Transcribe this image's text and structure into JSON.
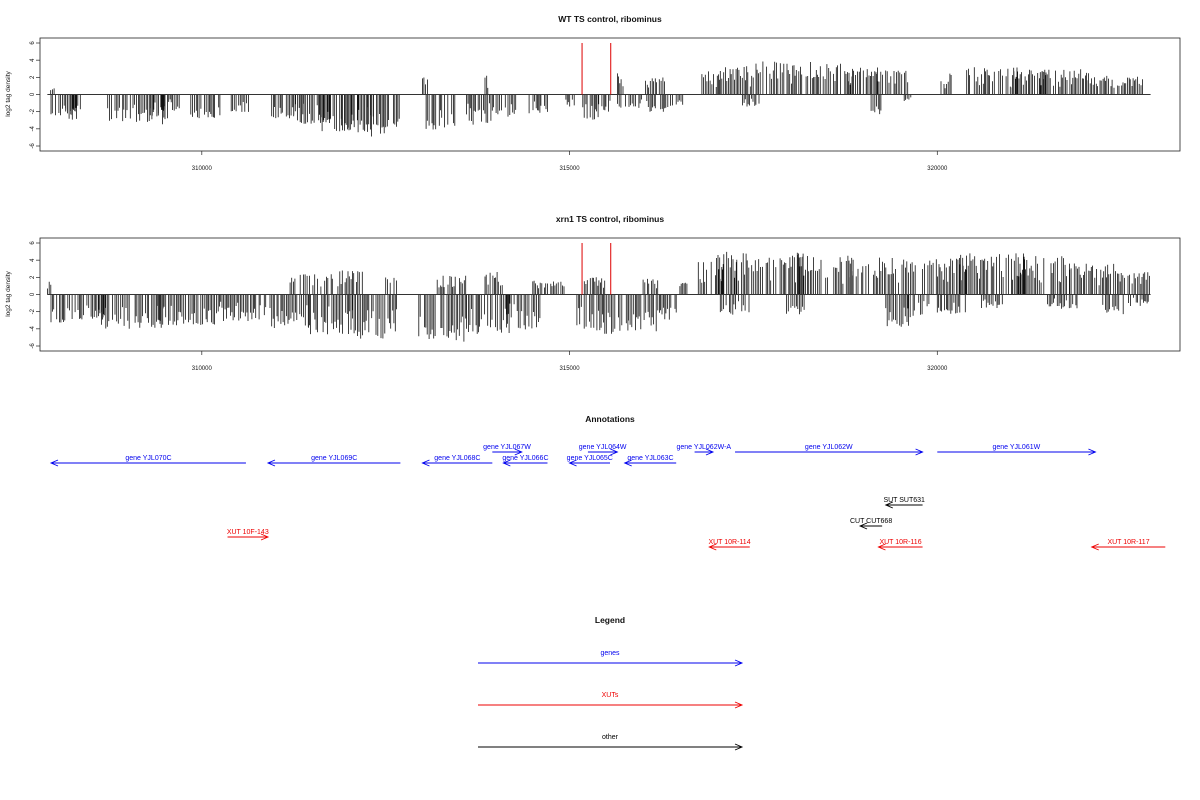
{
  "chart_data": [
    {
      "type": "bar",
      "title": "WT TS control, ribominus",
      "ylabel": "log2 tag density",
      "xlim": [
        307800,
        323300
      ],
      "ylim": [
        -6,
        6
      ],
      "xticks": [
        310000,
        315000,
        320000
      ],
      "yticks": [
        -6,
        -4,
        -2,
        0,
        2,
        4,
        6
      ],
      "baseline": {
        "x_start": 307900,
        "x_end": 322900
      },
      "markers": {
        "color": "#dd0000",
        "x": [
          315170,
          315560
        ],
        "y_top": 6
      },
      "density": {
        "color": "#111111",
        "segments": [
          {
            "x": [
              307920,
              308000
            ],
            "y": 0.9
          },
          {
            "x": [
              307950,
              308300
            ],
            "y": -2.5
          },
          {
            "x": [
              308150,
              308350
            ],
            "y": -3
          },
          {
            "x": [
              308700,
              309500
            ],
            "y": -3.2
          },
          {
            "x": [
              309300,
              309500
            ],
            "y": -2.5
          },
          {
            "x": [
              309450,
              309550
            ],
            "y": -3.5
          },
          {
            "x": [
              309550,
              309700
            ],
            "y": -2
          },
          {
            "x": [
              309850,
              310300
            ],
            "y": -2.8
          },
          {
            "x": [
              310400,
              310650
            ],
            "y": -2.2
          },
          {
            "x": [
              310950,
              311400
            ],
            "y": -2.8
          },
          {
            "x": [
              311250,
              311750
            ],
            "y": -3.6
          },
          {
            "x": [
              311600,
              312050
            ],
            "y": -4.5
          },
          {
            "x": [
              311900,
              312350
            ],
            "y": -4.2
          },
          {
            "x": [
              312100,
              312500
            ],
            "y": -4.9
          },
          {
            "x": [
              312450,
              312700
            ],
            "y": -4.0
          },
          {
            "x": [
              313000,
              313080
            ],
            "y": 2
          },
          {
            "x": [
              313050,
              313450
            ],
            "y": -4.2
          },
          {
            "x": [
              313600,
              313950
            ],
            "y": -3.6
          },
          {
            "x": [
              313850,
              313900
            ],
            "y": 2.8
          },
          {
            "x": [
              313950,
              314300
            ],
            "y": -2.7
          },
          {
            "x": [
              314450,
              314700
            ],
            "y": -2.2
          },
          {
            "x": [
              314950,
              315100
            ],
            "y": -1.5
          },
          {
            "x": [
              315180,
              315400
            ],
            "y": -3
          },
          {
            "x": [
              315350,
              315550
            ],
            "y": -2
          },
          {
            "x": [
              315650,
              315750
            ],
            "y": 2.5
          },
          {
            "x": [
              315650,
              316000
            ],
            "y": -1.6
          },
          {
            "x": [
              316000,
              316300
            ],
            "y": 2.0
          },
          {
            "x": [
              316050,
              316400
            ],
            "y": -2.1
          },
          {
            "x": [
              316450,
              316550
            ],
            "y": -1.2
          },
          {
            "x": [
              316800,
              317050
            ],
            "y": 2.8
          },
          {
            "x": [
              317050,
              317500
            ],
            "y": 3.4
          },
          {
            "x": [
              317350,
              317600
            ],
            "y": -1.4
          },
          {
            "x": [
              317500,
              318300
            ],
            "y": 3.9
          },
          {
            "x": [
              318300,
              318900
            ],
            "y": 3.6
          },
          {
            "x": [
              318800,
              319200
            ],
            "y": 3.2
          },
          {
            "x": [
              319100,
              319250
            ],
            "y": -2.5
          },
          {
            "x": [
              319150,
              319600
            ],
            "y": 2.9
          },
          {
            "x": [
              319550,
              319650
            ],
            "y": -0.8
          },
          {
            "x": [
              320050,
              320200
            ],
            "y": 2.6
          },
          {
            "x": [
              320400,
              321100
            ],
            "y": 3.2
          },
          {
            "x": [
              321000,
              321500
            ],
            "y": 3.0
          },
          {
            "x": [
              321400,
              322100
            ],
            "y": 3.0
          },
          {
            "x": [
              322050,
              322800
            ],
            "y": 2.2
          }
        ]
      }
    },
    {
      "type": "bar",
      "title": "xrn1 TS control, ribominus",
      "ylabel": "log2 tag density",
      "xlim": [
        307800,
        323300
      ],
      "ylim": [
        -6,
        6
      ],
      "xticks": [
        310000,
        315000,
        320000
      ],
      "yticks": [
        -6,
        -4,
        -2,
        0,
        2,
        4,
        6
      ],
      "baseline": {
        "x_start": 307900,
        "x_end": 322900
      },
      "markers": {
        "color": "#dd0000",
        "x": [
          315170,
          315560
        ],
        "y_top": 6
      },
      "density": {
        "color": "#111111",
        "segments": [
          {
            "x": [
              307900,
              307980
            ],
            "y": 1.8
          },
          {
            "x": [
              307950,
              308700
            ],
            "y": -3.3
          },
          {
            "x": [
              308600,
              309500
            ],
            "y": -4.0
          },
          {
            "x": [
              309400,
              310200
            ],
            "y": -3.6
          },
          {
            "x": [
              310200,
              310800
            ],
            "y": -3.1
          },
          {
            "x": [
              310850,
              311500
            ],
            "y": -3.9
          },
          {
            "x": [
              311200,
              311800
            ],
            "y": 2.4
          },
          {
            "x": [
              311450,
              312100
            ],
            "y": -4.7
          },
          {
            "x": [
              311850,
              312200
            ],
            "y": 3.0
          },
          {
            "x": [
              312050,
              312650
            ],
            "y": -5.2
          },
          {
            "x": [
              312500,
              312650
            ],
            "y": 2.0
          },
          {
            "x": [
              312950,
              313600
            ],
            "y": -5.5
          },
          {
            "x": [
              313200,
              313600
            ],
            "y": 2.3
          },
          {
            "x": [
              313600,
              314200
            ],
            "y": -4.8
          },
          {
            "x": [
              313850,
              314100
            ],
            "y": 2.7
          },
          {
            "x": [
              314150,
              314600
            ],
            "y": -4.1
          },
          {
            "x": [
              314500,
              314950
            ],
            "y": 1.6
          },
          {
            "x": [
              315100,
              315800
            ],
            "y": -4.6
          },
          {
            "x": [
              315200,
              315500
            ],
            "y": 2.0
          },
          {
            "x": [
              315800,
              316200
            ],
            "y": -4.4
          },
          {
            "x": [
              316000,
              316200
            ],
            "y": 1.9
          },
          {
            "x": [
              316200,
              316450
            ],
            "y": -3.1
          },
          {
            "x": [
              316500,
              316600
            ],
            "y": 1.4
          },
          {
            "x": [
              316750,
              317100
            ],
            "y": 3.9
          },
          {
            "x": [
              317000,
              317300
            ],
            "y": 5.8
          },
          {
            "x": [
              317050,
              317450
            ],
            "y": -2.4
          },
          {
            "x": [
              317250,
              318200
            ],
            "y": 4.9
          },
          {
            "x": [
              317950,
              318200
            ],
            "y": -2.3
          },
          {
            "x": [
              318100,
              318900
            ],
            "y": 4.6
          },
          {
            "x": [
              318800,
              319700
            ],
            "y": 4.4
          },
          {
            "x": [
              319300,
              319650
            ],
            "y": -3.9
          },
          {
            "x": [
              319600,
              319900
            ],
            "y": -2.5
          },
          {
            "x": [
              319800,
              320400
            ],
            "y": 4.2
          },
          {
            "x": [
              320000,
              320400
            ],
            "y": -2.4
          },
          {
            "x": [
              320300,
              321200
            ],
            "y": 4.8
          },
          {
            "x": [
              320600,
              320900
            ],
            "y": -1.6
          },
          {
            "x": [
              321100,
              321800
            ],
            "y": 4.5
          },
          {
            "x": [
              321500,
              321900
            ],
            "y": -1.7
          },
          {
            "x": [
              321800,
              322500
            ],
            "y": 3.7
          },
          {
            "x": [
              322250,
              322550
            ],
            "y": -2.3
          },
          {
            "x": [
              322500,
              322900
            ],
            "y": 2.6
          },
          {
            "x": [
              322600,
              322900
            ],
            "y": -1.4
          }
        ]
      }
    }
  ],
  "annotations": {
    "title": "Annotations",
    "features": [
      {
        "label": "gene YJL070C",
        "dir": "-",
        "start": 307950,
        "end": 310600,
        "color": "#0000ee"
      },
      {
        "label": "gene YJL069C",
        "dir": "-",
        "start": 310900,
        "end": 312700,
        "color": "#0000ee"
      },
      {
        "label": "gene YJL068C",
        "dir": "-",
        "start": 313000,
        "end": 313950,
        "color": "#0000ee"
      },
      {
        "label": "gene YJL067W",
        "dir": "+",
        "start": 313950,
        "end": 314350,
        "color": "#0000ee"
      },
      {
        "label": "gene YJL066C",
        "dir": "-",
        "start": 314100,
        "end": 314700,
        "color": "#0000ee"
      },
      {
        "label": "gene YJL064W",
        "dir": "+",
        "start": 315250,
        "end": 315650,
        "color": "#0000ee"
      },
      {
        "label": "gene YJL065C",
        "dir": "-",
        "start": 315000,
        "end": 315550,
        "color": "#0000ee"
      },
      {
        "label": "gene YJL063C",
        "dir": "-",
        "start": 315750,
        "end": 316450,
        "color": "#0000ee"
      },
      {
        "label": "gene YJL062W-A",
        "dir": "+",
        "start": 316700,
        "end": 316950,
        "color": "#0000ee"
      },
      {
        "label": "gene YJL062W",
        "dir": "+",
        "start": 317250,
        "end": 319800,
        "color": "#0000ee"
      },
      {
        "label": "gene YJL061W",
        "dir": "+",
        "start": 320000,
        "end": 322150,
        "color": "#0000ee"
      },
      {
        "label": "SUT SUT631",
        "dir": "-",
        "start": 319300,
        "end": 319800,
        "color": "#000000"
      },
      {
        "label": "CUT CUT668",
        "dir": "-",
        "start": 318950,
        "end": 319250,
        "color": "#000000"
      },
      {
        "label": "XUT 10F-143",
        "dir": "+",
        "start": 310350,
        "end": 310900,
        "color": "#ee0000"
      },
      {
        "label": "XUT 10R-114",
        "dir": "-",
        "start": 316900,
        "end": 317450,
        "color": "#ee0000"
      },
      {
        "label": "XUT 10R-116",
        "dir": "-",
        "start": 319200,
        "end": 319800,
        "color": "#ee0000"
      },
      {
        "label": "XUT 10R-117",
        "dir": "-",
        "start": 322100,
        "end": 323100,
        "color": "#ee0000"
      }
    ]
  },
  "legend": {
    "title": "Legend",
    "entries": [
      {
        "label": "genes",
        "color": "#0000ee"
      },
      {
        "label": "XUTs",
        "color": "#ee0000"
      },
      {
        "label": "other",
        "color": "#000000"
      }
    ]
  }
}
